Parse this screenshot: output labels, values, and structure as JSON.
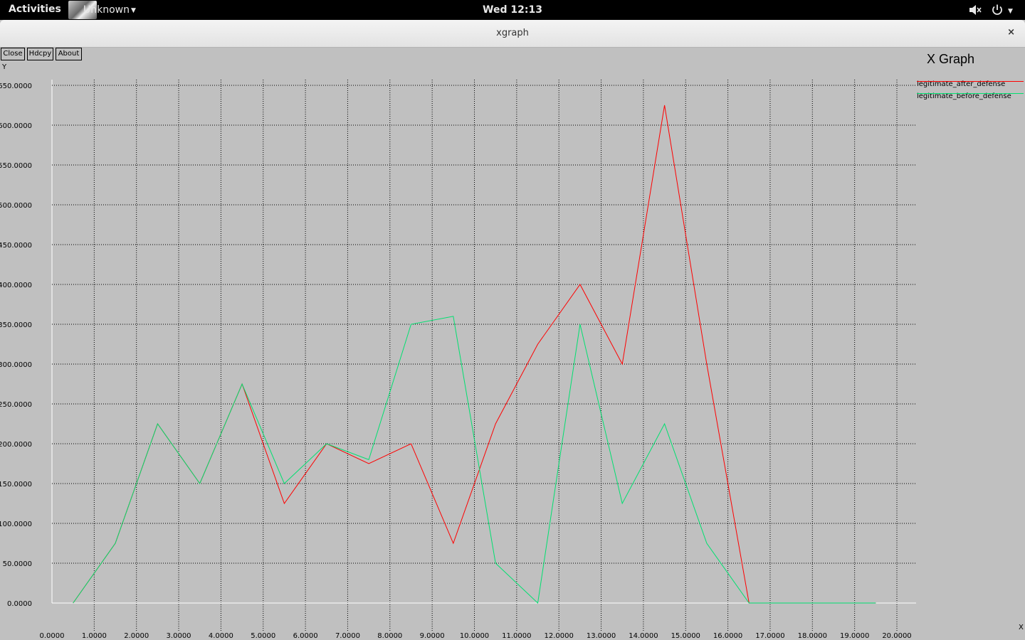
{
  "topbar": {
    "activities": "Activities",
    "app_label": "Unknown",
    "clock": "Wed 12:13"
  },
  "window": {
    "title": "xgraph",
    "close_glyph": "×"
  },
  "buttons": {
    "close": "Close",
    "hdcpy": "Hdcpy",
    "about": "About"
  },
  "icons": {
    "app": "app-icon",
    "volume": "volume-muted-icon",
    "power": "power-icon",
    "menu_caret": "caret-down-icon"
  },
  "colors": {
    "background": "#c0c0c0",
    "after_defense": "#ff0000",
    "before_defense": "#00e070"
  },
  "chart_data": {
    "type": "line",
    "title": "X Graph",
    "xlabel": "X",
    "ylabel": "Y",
    "xlim": [
      0,
      20
    ],
    "ylim": [
      0,
      650
    ],
    "grid": true,
    "legend_position": "top-right",
    "x_ticks": [
      "0.0000",
      "1.0000",
      "2.0000",
      "3.0000",
      "4.0000",
      "5.0000",
      "6.0000",
      "7.0000",
      "8.0000",
      "9.0000",
      "10.0000",
      "11.0000",
      "12.0000",
      "13.0000",
      "14.0000",
      "15.0000",
      "16.0000",
      "17.0000",
      "18.0000",
      "19.0000",
      "20.0000"
    ],
    "y_ticks": [
      "0.0000",
      "50.0000",
      "100.0000",
      "150.0000",
      "200.0000",
      "250.0000",
      "300.0000",
      "350.0000",
      "400.0000",
      "450.0000",
      "500.0000",
      "550.0000",
      "600.0000",
      "650.0000"
    ],
    "series": [
      {
        "name": "legitimate_after_defense",
        "color": "#ff0000",
        "x": [
          0.5,
          1.5,
          2.5,
          3.5,
          4.5,
          5.5,
          6.5,
          7.5,
          8.5,
          9.5,
          10.5,
          11.5,
          12.5,
          13.5,
          14.5,
          15.5,
          16.5,
          17.5,
          18.5,
          19.5
        ],
        "y": [
          0,
          75,
          225,
          150,
          275,
          125,
          200,
          175,
          200,
          75,
          225,
          325,
          400,
          300,
          625,
          300,
          0,
          0,
          0,
          0
        ]
      },
      {
        "name": "legitimate_before_defense",
        "color": "#00e070",
        "x": [
          0.5,
          1.5,
          2.5,
          3.5,
          4.5,
          5.5,
          6.5,
          7.5,
          8.5,
          9.5,
          10.5,
          11.5,
          12.5,
          13.5,
          14.5,
          15.5,
          16.5,
          17.5,
          18.5,
          19.5
        ],
        "y": [
          0,
          75,
          225,
          150,
          275,
          150,
          200,
          180,
          350,
          360,
          50,
          0,
          350,
          125,
          225,
          75,
          0,
          0,
          0,
          0
        ]
      }
    ]
  }
}
